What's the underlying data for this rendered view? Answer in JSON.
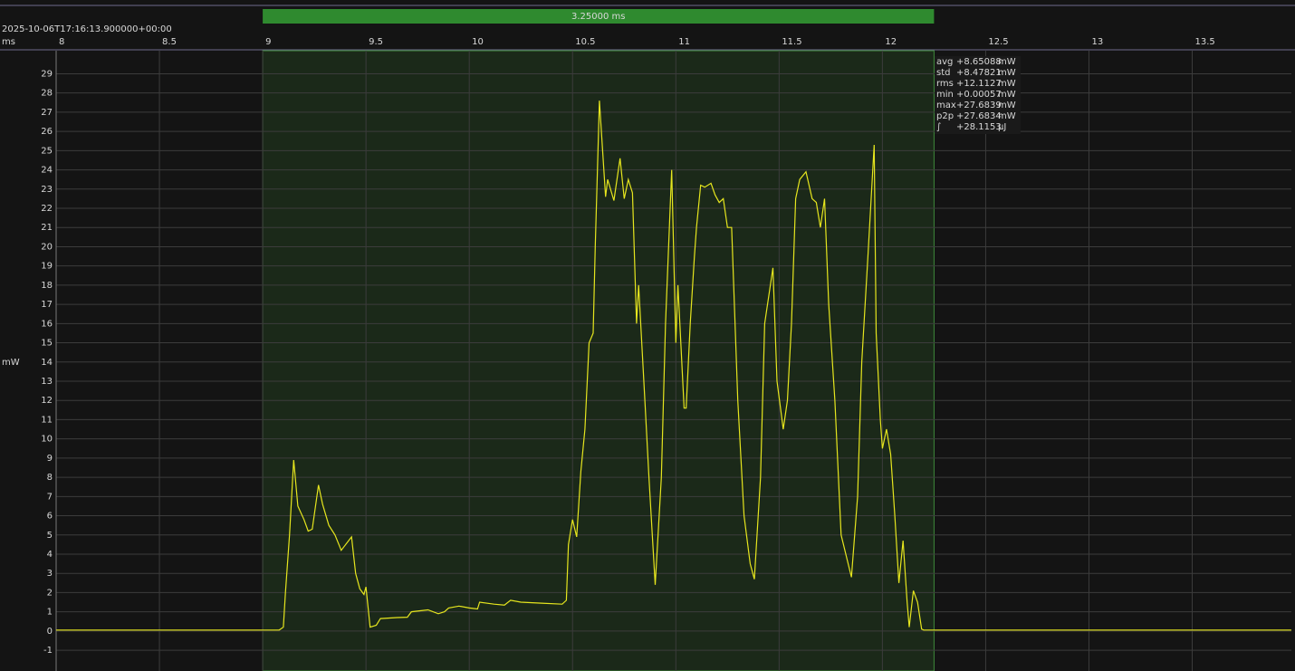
{
  "chart_data": {
    "type": "line",
    "timestamp": "2025-10-06T17:16:13.900000+00:00",
    "x_unit": "ms",
    "y_label": "mW",
    "color": "#e6e61e",
    "xlim": [
      8,
      13.98
    ],
    "ylim": [
      -2.08,
      30.2
    ],
    "xticks": [
      8,
      8.5,
      9,
      9.5,
      10,
      10.5,
      11,
      11.5,
      12,
      12.5,
      13,
      13.5
    ],
    "yticks": [
      -1,
      0,
      1,
      2,
      3,
      4,
      5,
      6,
      7,
      8,
      9,
      10,
      11,
      12,
      13,
      14,
      15,
      16,
      17,
      18,
      19,
      20,
      21,
      22,
      23,
      24,
      25,
      26,
      27,
      28,
      29
    ],
    "grid": true,
    "selection": {
      "start": 9,
      "end": 12.25,
      "label": "3.25000 ms"
    },
    "stats": [
      {
        "label": "avg",
        "value": "+8.65088",
        "unit": "mW"
      },
      {
        "label": "std",
        "value": "+8.47821",
        "unit": "mW"
      },
      {
        "label": "rms",
        "value": "+12.1127",
        "unit": "mW"
      },
      {
        "label": "min",
        "value": "+0.00057",
        "unit": "mW"
      },
      {
        "label": "max",
        "value": "+27.6839",
        "unit": "mW"
      },
      {
        "label": "p2p",
        "value": "+27.6834",
        "unit": "mW"
      },
      {
        "label": "∫",
        "value": "+28.1153",
        "unit": "µJ"
      }
    ],
    "x": [
      8,
      8.5,
      9,
      9.08,
      9.1,
      9.11,
      9.13,
      9.15,
      9.17,
      9.2,
      9.22,
      9.24,
      9.27,
      9.29,
      9.32,
      9.35,
      9.38,
      9.43,
      9.45,
      9.47,
      9.49,
      9.5,
      9.52,
      9.55,
      9.57,
      9.65,
      9.7,
      9.72,
      9.8,
      9.85,
      9.88,
      9.9,
      9.95,
      10,
      10.04,
      10.05,
      10.12,
      10.17,
      10.2,
      10.25,
      10.35,
      10.45,
      10.47,
      10.48,
      10.5,
      10.52,
      10.54,
      10.56,
      10.58,
      10.6,
      10.61,
      10.63,
      10.66,
      10.67,
      10.7,
      10.73,
      10.75,
      10.77,
      10.79,
      10.81,
      10.82,
      10.85,
      10.87,
      10.9,
      10.93,
      10.95,
      10.98,
      11,
      11.01,
      11.04,
      11.05,
      11.07,
      11.09,
      11.1,
      11.12,
      11.14,
      11.17,
      11.19,
      11.21,
      11.23,
      11.25,
      11.27,
      11.3,
      11.33,
      11.36,
      11.38,
      11.41,
      11.43,
      11.47,
      11.49,
      11.52,
      11.54,
      11.56,
      11.58,
      11.6,
      11.63,
      11.66,
      11.68,
      11.7,
      11.72,
      11.74,
      11.77,
      11.8,
      11.85,
      11.88,
      11.9,
      11.93,
      11.96,
      11.97,
      11.99,
      12,
      12.02,
      12.04,
      12.06,
      12.08,
      12.1,
      12.12,
      12.13,
      12.15,
      12.17,
      12.19,
      12.2,
      13,
      13.98
    ],
    "values": [
      0.05,
      0.05,
      0.05,
      0.05,
      0.2,
      2,
      5,
      8.9,
      6.5,
      5.8,
      5.2,
      5.3,
      7.6,
      6.6,
      5.5,
      5,
      4.2,
      4.9,
      3,
      2.2,
      1.9,
      2.3,
      0.2,
      0.3,
      0.65,
      0.7,
      0.72,
      1,
      1.1,
      0.9,
      1,
      1.2,
      1.3,
      1.2,
      1.15,
      1.5,
      1.4,
      1.35,
      1.6,
      1.5,
      1.45,
      1.4,
      1.6,
      4.5,
      5.8,
      4.9,
      8.3,
      10.5,
      15,
      15.5,
      20,
      27.6,
      22.6,
      23.5,
      22.4,
      24.6,
      22.5,
      23.5,
      22.8,
      16,
      18,
      12,
      8,
      2.4,
      8,
      16,
      24,
      15,
      18,
      11.6,
      11.6,
      16,
      19.5,
      21,
      23.2,
      23.1,
      23.3,
      22.7,
      22.3,
      22.5,
      21,
      21,
      12,
      6,
      3.5,
      2.7,
      8,
      16,
      18.9,
      13,
      10.5,
      12,
      16,
      22.5,
      23.5,
      23.9,
      22.5,
      22.3,
      21,
      22.5,
      17,
      12,
      5,
      2.8,
      7,
      14,
      19.5,
      25.3,
      15.5,
      11,
      9.5,
      10.5,
      9.2,
      6,
      2.5,
      4.7,
      1.5,
      0.2,
      2.1,
      1.5,
      0.1,
      0.05,
      0.05,
      0.05
    ]
  }
}
